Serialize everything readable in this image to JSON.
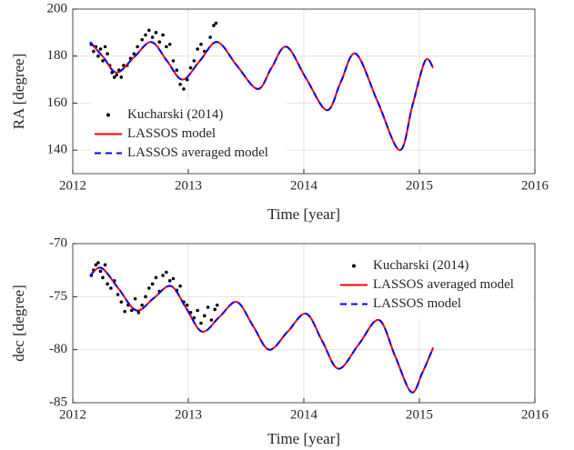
{
  "chart_data": [
    {
      "type": "line",
      "xlabel": "Time [year]",
      "ylabel": "RA [degree]",
      "xlim": [
        2012,
        2016
      ],
      "xticks": [
        2012,
        2013,
        2014,
        2015,
        2016
      ],
      "ylim": [
        130,
        200
      ],
      "yticks": [
        140,
        160,
        180,
        200
      ],
      "grid": true,
      "legend": "lower left",
      "series": [
        {
          "name": "Kucharski (2014)",
          "color": "#000000",
          "style": "markers",
          "x": [
            2012.16,
            2012.18,
            2012.2,
            2012.22,
            2012.24,
            2012.26,
            2012.28,
            2012.3,
            2012.32,
            2012.34,
            2012.36,
            2012.38,
            2012.4,
            2012.42,
            2012.44,
            2012.47,
            2012.5,
            2012.53,
            2012.56,
            2012.6,
            2012.63,
            2012.66,
            2012.69,
            2012.72,
            2012.75,
            2012.78,
            2012.81,
            2012.84,
            2012.87,
            2012.9,
            2012.93,
            2012.96,
            2012.99,
            2013.02,
            2013.05,
            2013.08,
            2013.11,
            2013.14,
            2013.19,
            2013.22,
            2013.24
          ],
          "values": [
            185,
            182,
            184,
            180,
            183,
            178,
            184,
            181,
            176,
            173,
            171,
            172,
            174,
            171,
            176,
            176,
            179,
            181,
            184,
            187,
            189,
            191,
            188,
            190,
            186,
            189,
            184,
            185,
            178,
            174,
            168,
            166,
            170,
            175,
            178,
            183,
            185,
            182,
            188,
            193,
            194
          ]
        },
        {
          "name": "LASSOS model",
          "color": "#ff0000",
          "style": "solid",
          "x": [
            2012.15,
            2012.265,
            2012.38,
            2012.53,
            2012.68,
            2012.815,
            2012.95,
            2013.1,
            2013.25,
            2013.42,
            2013.6,
            2013.72,
            2013.85,
            2014.02,
            2014.2,
            2014.32,
            2014.45,
            2014.64,
            2014.83,
            2014.94,
            2015.05,
            2015.12
          ],
          "values": [
            186,
            179.5,
            173,
            179.5,
            186,
            178,
            170,
            178,
            186,
            176,
            166,
            175,
            184,
            170.5,
            157,
            169,
            181,
            160.5,
            140,
            159,
            178,
            175
          ]
        },
        {
          "name": "LASSOS averaged model",
          "color": "#0000ff",
          "style": "dashed",
          "x": [
            2012.15,
            2012.265,
            2012.38,
            2012.53,
            2012.68,
            2012.815,
            2012.95,
            2013.1,
            2013.25,
            2013.42,
            2013.6,
            2013.72,
            2013.85,
            2014.02,
            2014.2,
            2014.32,
            2014.45,
            2014.64,
            2014.83,
            2014.94,
            2015.05,
            2015.12
          ],
          "values": [
            186,
            179.5,
            173,
            179.5,
            186,
            178,
            170,
            178,
            186,
            176,
            166,
            175,
            184,
            170.5,
            157,
            169,
            181,
            160.5,
            140,
            159,
            178,
            175
          ]
        }
      ]
    },
    {
      "type": "line",
      "xlabel": "Time [year]",
      "ylabel": "dec [degree]",
      "xlim": [
        2012,
        2016
      ],
      "xticks": [
        2012,
        2013,
        2014,
        2015,
        2016
      ],
      "ylim": [
        -85,
        -70
      ],
      "yticks": [
        -85,
        -80,
        -75,
        -70
      ],
      "grid": true,
      "legend": "upper right",
      "series": [
        {
          "name": "Kucharski (2014)",
          "color": "#000000",
          "style": "markers",
          "x": [
            2012.16,
            2012.18,
            2012.2,
            2012.22,
            2012.24,
            2012.26,
            2012.28,
            2012.3,
            2012.33,
            2012.36,
            2012.39,
            2012.42,
            2012.45,
            2012.48,
            2012.51,
            2012.54,
            2012.57,
            2012.6,
            2012.63,
            2012.66,
            2012.69,
            2012.72,
            2012.75,
            2012.78,
            2012.81,
            2012.84,
            2012.87,
            2012.9,
            2012.93,
            2012.96,
            2012.99,
            2013.02,
            2013.05,
            2013.08,
            2013.11,
            2013.14,
            2013.17,
            2013.2,
            2013.23,
            2013.25
          ],
          "values": [
            -73,
            -72.5,
            -72,
            -71.8,
            -72.6,
            -73.2,
            -72,
            -73.8,
            -74.2,
            -73.5,
            -74.8,
            -75.5,
            -76.4,
            -75.8,
            -76.3,
            -75.2,
            -76.5,
            -75.8,
            -75,
            -74.2,
            -73.8,
            -73.2,
            -74.5,
            -73,
            -72.7,
            -73.5,
            -73.3,
            -74.4,
            -74,
            -75.5,
            -75.8,
            -76.5,
            -77,
            -76.3,
            -77.5,
            -76.8,
            -76,
            -77.2,
            -76.2,
            -75.8
          ]
        },
        {
          "name": "LASSOS averaged model",
          "color": "#ff0000",
          "style": "solid",
          "x": [
            2012.15,
            2012.25,
            2012.4,
            2012.55,
            2012.7,
            2012.85,
            2012.985,
            2013.12,
            2013.27,
            2013.42,
            2013.56,
            2013.7,
            2013.86,
            2014.02,
            2014.16,
            2014.3,
            2014.475,
            2014.65,
            2014.79,
            2014.93,
            2015.025,
            2015.12
          ],
          "values": [
            -73,
            -72.3,
            -74.3,
            -76.3,
            -75.15,
            -74,
            -76.15,
            -78.3,
            -76.9,
            -75.5,
            -77.75,
            -80,
            -78.3,
            -76.6,
            -79.2,
            -81.8,
            -79.5,
            -77.2,
            -80.6,
            -84,
            -82.2,
            -79.8
          ]
        },
        {
          "name": "LASSOS model",
          "color": "#0000ff",
          "style": "dashed",
          "x": [
            2012.15,
            2012.25,
            2012.4,
            2012.55,
            2012.7,
            2012.85,
            2012.985,
            2013.12,
            2013.27,
            2013.42,
            2013.56,
            2013.7,
            2013.86,
            2014.02,
            2014.16,
            2014.3,
            2014.475,
            2014.65,
            2014.79,
            2014.93,
            2015.025,
            2015.12
          ],
          "values": [
            -73,
            -72.3,
            -74.3,
            -76.3,
            -75.15,
            -74,
            -76.15,
            -78.3,
            -76.9,
            -75.5,
            -77.75,
            -80,
            -78.3,
            -76.6,
            -79.2,
            -81.8,
            -79.5,
            -77.2,
            -80.6,
            -84,
            -82.2,
            -79.8
          ]
        }
      ]
    }
  ]
}
